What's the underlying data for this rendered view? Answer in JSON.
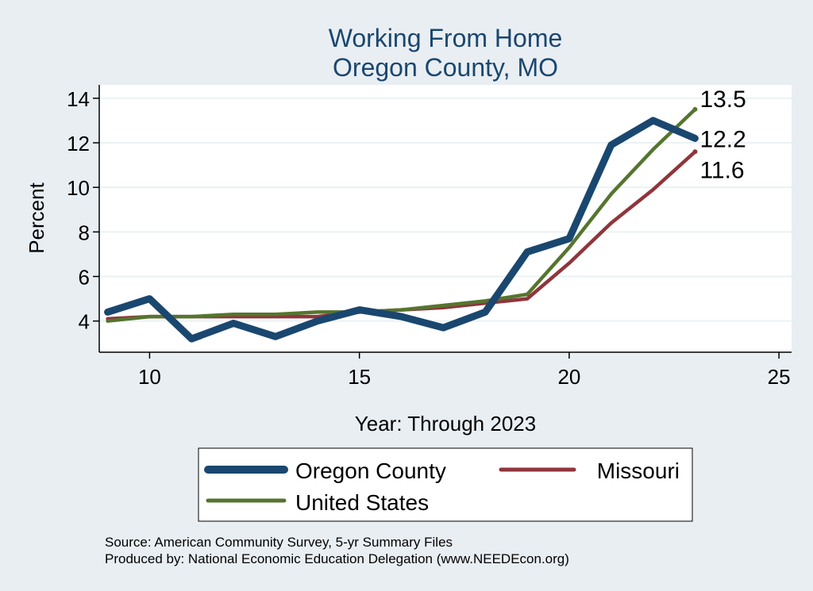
{
  "chart_data": {
    "type": "line",
    "title": [
      "Working From Home",
      "Oregon County, MO"
    ],
    "xlabel": "Year: Through 2023",
    "ylabel": "Percent",
    "xlim": [
      8.8,
      25.3
    ],
    "ylim": [
      2.6,
      14.6
    ],
    "x_ticks": [
      10,
      15,
      20,
      25
    ],
    "y_ticks": [
      4,
      6,
      8,
      10,
      12,
      14
    ],
    "grid": "horizontal",
    "legend_position": "bottom",
    "x": [
      9,
      10,
      11,
      12,
      13,
      14,
      15,
      16,
      17,
      18,
      19,
      20,
      21,
      22,
      23
    ],
    "series": [
      {
        "name": "Oregon County",
        "color": "#1a476f",
        "values": [
          4.4,
          5.0,
          3.2,
          3.9,
          3.3,
          4.0,
          4.5,
          4.2,
          3.7,
          4.4,
          7.1,
          7.7,
          11.9,
          13.0,
          12.2
        ],
        "end_label": "12.2"
      },
      {
        "name": "Missouri",
        "color": "#90353b",
        "values": [
          4.1,
          4.2,
          4.2,
          4.2,
          4.2,
          4.2,
          4.4,
          4.5,
          4.6,
          4.8,
          5.0,
          6.6,
          8.4,
          9.9,
          11.6
        ],
        "end_label": "11.6"
      },
      {
        "name": "United States",
        "color": "#55752f",
        "values": [
          4.0,
          4.2,
          4.2,
          4.3,
          4.3,
          4.4,
          4.4,
          4.5,
          4.7,
          4.9,
          5.2,
          7.3,
          9.7,
          11.7,
          13.5
        ],
        "end_label": "13.5"
      }
    ],
    "source": [
      "Source: American Community Survey, 5-yr Summary Files",
      "Produced by: National Economic Education Delegation (www.NEEDEcon.org)"
    ]
  }
}
